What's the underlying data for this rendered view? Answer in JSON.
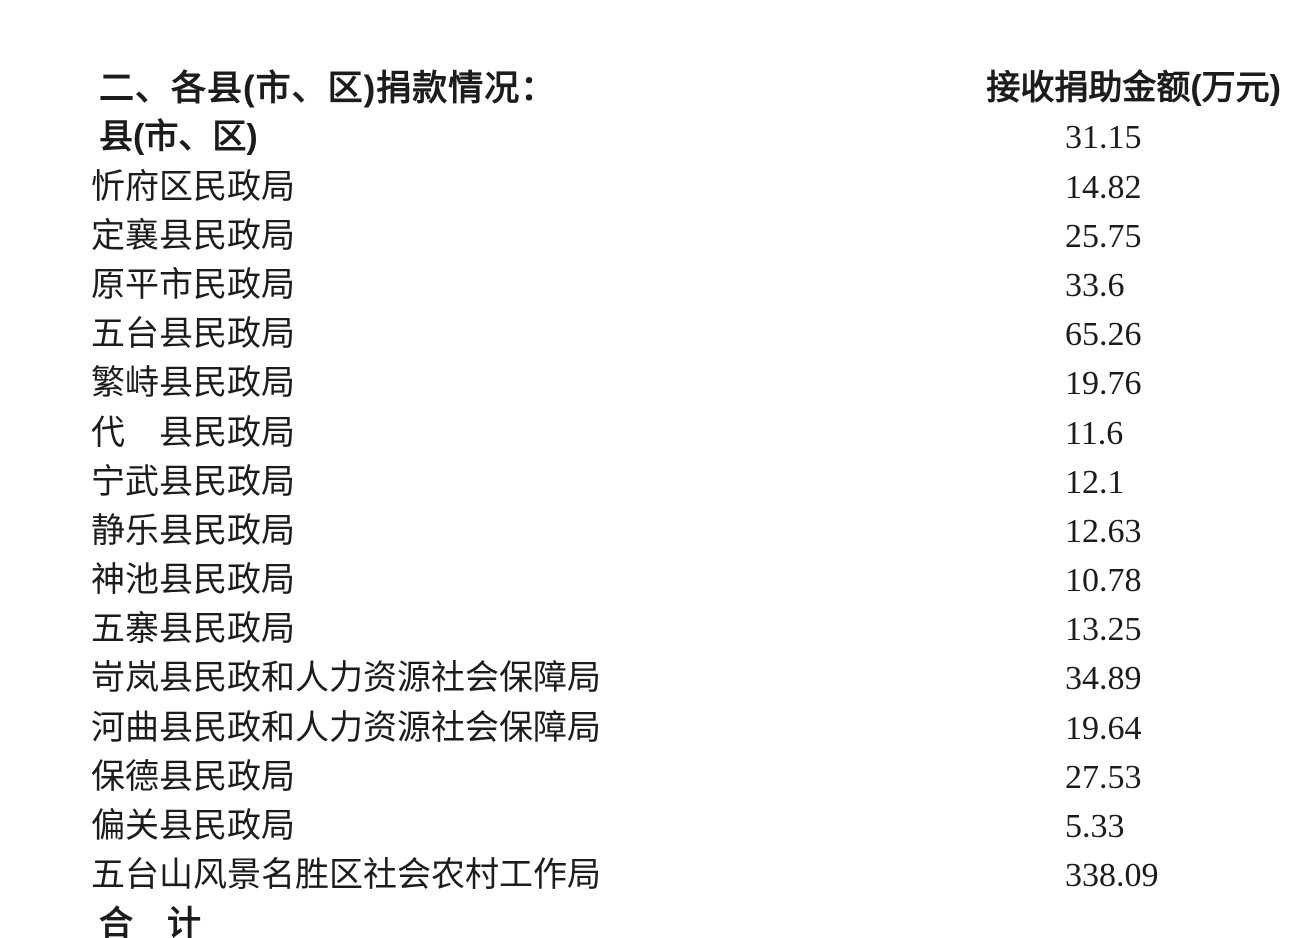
{
  "colors": {
    "background": "#ffffff",
    "text": "#1c1c1c"
  },
  "title": "二、各县(市、区)捐款情况：",
  "table": {
    "columns": [
      "县(市、区)",
      "接收捐助金额(万元)"
    ],
    "rows": [
      {
        "name": "忻府区民政局",
        "amount": "31.15"
      },
      {
        "name": "定襄县民政局",
        "amount": "14.82"
      },
      {
        "name": "原平市民政局",
        "amount": "25.75"
      },
      {
        "name": "五台县民政局",
        "amount": "33.6"
      },
      {
        "name": "繁峙县民政局",
        "amount": "65.26"
      },
      {
        "name": "代　县民政局",
        "amount": "19.76"
      },
      {
        "name": "宁武县民政局",
        "amount": "11.6"
      },
      {
        "name": "静乐县民政局",
        "amount": "12.1"
      },
      {
        "name": "神池县民政局",
        "amount": "12.63"
      },
      {
        "name": "五寨县民政局",
        "amount": "10.78"
      },
      {
        "name": "岢岚县民政和人力资源社会保障局",
        "amount": "13.25"
      },
      {
        "name": "河曲县民政和人力资源社会保障局",
        "amount": "34.89"
      },
      {
        "name": "保德县民政局",
        "amount": "19.64"
      },
      {
        "name": "偏关县民政局",
        "amount": "27.53"
      },
      {
        "name": "五台山风景名胜区社会农村工作局",
        "amount": "5.33"
      }
    ],
    "total": {
      "label": "合　计",
      "amount": "338.09"
    }
  }
}
